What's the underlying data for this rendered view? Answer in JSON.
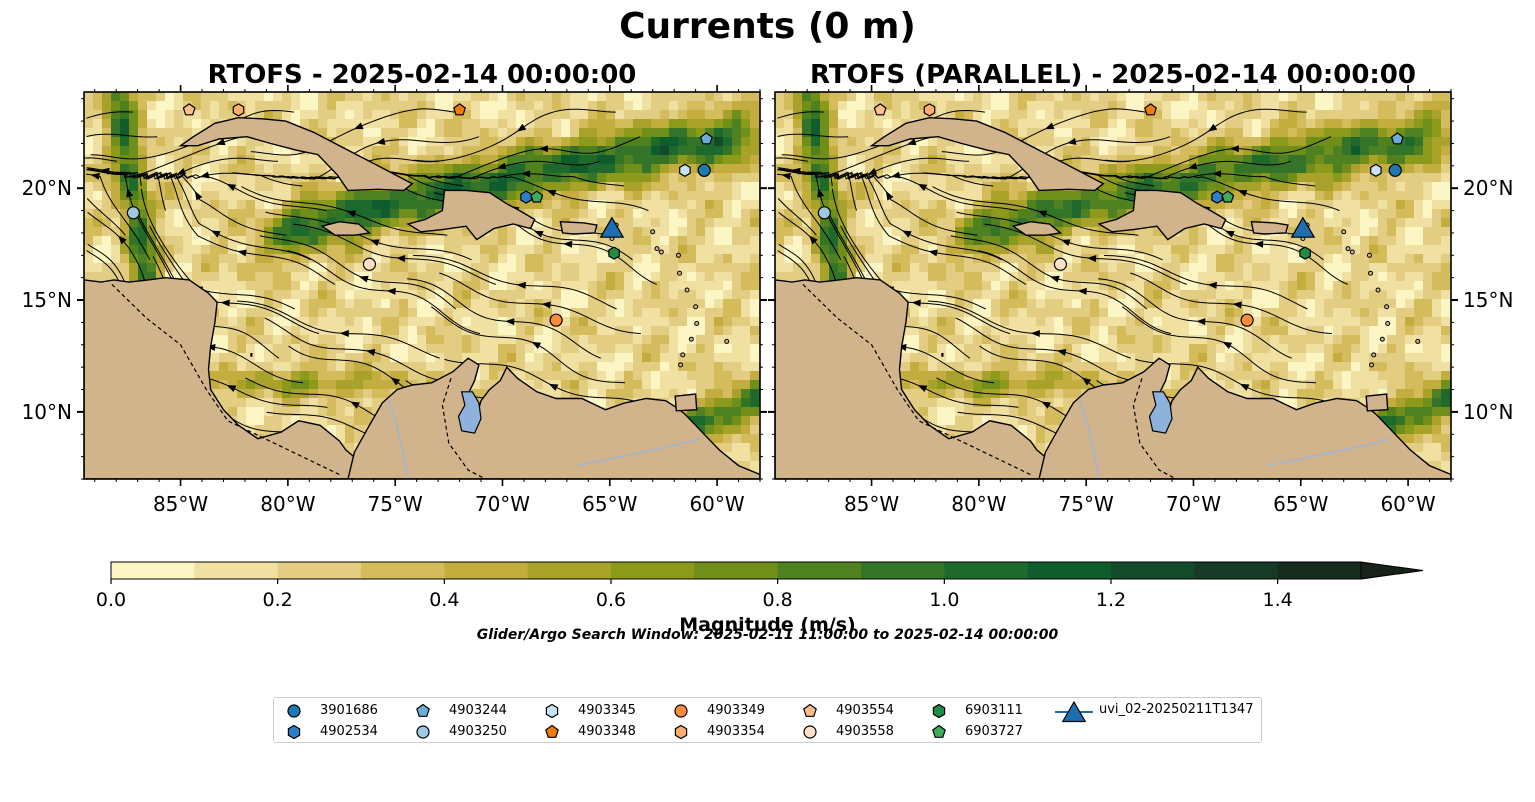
{
  "figure": {
    "suptitle": "Currents (0 m)",
    "search_window": "Glider/Argo Search Window: 2025-02-11 11:00:00 to 2025-02-14 00:00:00"
  },
  "colors": {
    "land": "#d2b48c",
    "coast": "#000000",
    "rivers": "#9fb6d3",
    "lake": "#8fb2dd",
    "streamlines": "#000000",
    "colormap": [
      "#fbf6c4",
      "#f0e1a2",
      "#e2cd82",
      "#d4bb5c",
      "#c2ad3e",
      "#a8a22a",
      "#8c9a1c",
      "#6f8e1a",
      "#4f8120",
      "#337428",
      "#1d6a2c",
      "#0f5d2c",
      "#124a2a",
      "#163a25",
      "#172c1f",
      "#16221a"
    ]
  },
  "chart_data": [
    {
      "type": "heatmap",
      "title": "RTOFS - 2025-02-14 00:00:00",
      "xlim": [
        -89.5,
        -58.0
      ],
      "ylim": [
        7.0,
        24.3
      ],
      "xticks": [
        "85°W",
        "80°W",
        "75°W",
        "70°W",
        "65°W",
        "60°W"
      ],
      "yticks": [
        "10°N",
        "15°N",
        "20°N"
      ],
      "ytick_side": "left",
      "jet_strength": 1.0,
      "markers": [
        {
          "id": "3901686",
          "lon": -60.6,
          "lat": 20.8
        },
        {
          "id": "4902534",
          "lon": -68.9,
          "lat": 19.6
        },
        {
          "id": "4903244",
          "lon": -60.5,
          "lat": 22.2
        },
        {
          "id": "4903250",
          "lon": -87.2,
          "lat": 18.9
        },
        {
          "id": "4903345",
          "lon": -61.5,
          "lat": 20.8
        },
        {
          "id": "4903348",
          "lon": -72.0,
          "lat": 23.5
        },
        {
          "id": "4903349",
          "lon": -67.5,
          "lat": 14.1
        },
        {
          "id": "4903354",
          "lon": -82.3,
          "lat": 23.5
        },
        {
          "id": "4903554",
          "lon": -84.6,
          "lat": 23.5
        },
        {
          "id": "4903558",
          "lon": -76.2,
          "lat": 16.6
        },
        {
          "id": "6903111",
          "lon": -64.8,
          "lat": 17.1
        },
        {
          "id": "6903727",
          "lon": -68.4,
          "lat": 19.6
        },
        {
          "id": "uvi_02-20250211T1347",
          "lon": -64.9,
          "lat": 18.1
        }
      ]
    },
    {
      "type": "heatmap",
      "title": "RTOFS (PARALLEL) - 2025-02-14 00:00:00",
      "xlim": [
        -89.5,
        -58.0
      ],
      "ylim": [
        7.0,
        24.3
      ],
      "xticks": [
        "85°W",
        "80°W",
        "75°W",
        "70°W",
        "65°W",
        "60°W"
      ],
      "yticks": [
        "10°N",
        "15°N",
        "20°N"
      ],
      "ytick_side": "right",
      "jet_strength": 0.85,
      "markers": [
        {
          "id": "3901686",
          "lon": -60.6,
          "lat": 20.8
        },
        {
          "id": "4902534",
          "lon": -68.9,
          "lat": 19.6
        },
        {
          "id": "4903244",
          "lon": -60.5,
          "lat": 22.2
        },
        {
          "id": "4903250",
          "lon": -87.2,
          "lat": 18.9
        },
        {
          "id": "4903345",
          "lon": -61.5,
          "lat": 20.8
        },
        {
          "id": "4903348",
          "lon": -72.0,
          "lat": 23.5
        },
        {
          "id": "4903349",
          "lon": -67.5,
          "lat": 14.1
        },
        {
          "id": "4903354",
          "lon": -82.3,
          "lat": 23.5
        },
        {
          "id": "4903554",
          "lon": -84.6,
          "lat": 23.5
        },
        {
          "id": "4903558",
          "lon": -76.2,
          "lat": 16.6
        },
        {
          "id": "6903111",
          "lon": -64.8,
          "lat": 17.1
        },
        {
          "id": "6903727",
          "lon": -68.4,
          "lat": 19.6
        },
        {
          "id": "uvi_02-20250211T1347",
          "lon": -64.9,
          "lat": 18.1
        }
      ]
    }
  ],
  "colorbar": {
    "label": "Magnitude (m/s)",
    "range": [
      0.0,
      1.5
    ],
    "extend": "max",
    "ticks": [
      "0.0",
      "0.2",
      "0.4",
      "0.6",
      "0.8",
      "1.0",
      "1.2",
      "1.4"
    ]
  },
  "legend": [
    {
      "label": "3901686",
      "shape": "circle",
      "color": "#1f77b4"
    },
    {
      "label": "4902534",
      "shape": "hexagon",
      "color": "#2a7fc8"
    },
    {
      "label": "4903244",
      "shape": "pentagon",
      "color": "#6aaed6"
    },
    {
      "label": "4903250",
      "shape": "circle",
      "color": "#9ecae1"
    },
    {
      "label": "4903345",
      "shape": "hexagon",
      "color": "#c6e4f5"
    },
    {
      "label": "4903348",
      "shape": "pentagon",
      "color": "#f07d0b"
    },
    {
      "label": "4903349",
      "shape": "circle",
      "color": "#fd8d3c"
    },
    {
      "label": "4903354",
      "shape": "hexagon",
      "color": "#fdae6b"
    },
    {
      "label": "4903554",
      "shape": "pentagon",
      "color": "#fdc08c"
    },
    {
      "label": "4903558",
      "shape": "circle",
      "color": "#fde0c5"
    },
    {
      "label": "6903111",
      "shape": "hexagon",
      "color": "#238b45"
    },
    {
      "label": "6903727",
      "shape": "pentagon",
      "color": "#41ab5d"
    },
    {
      "label": "uvi_02-20250211T1347",
      "shape": "triangle",
      "color": "#1f6fb0"
    }
  ]
}
